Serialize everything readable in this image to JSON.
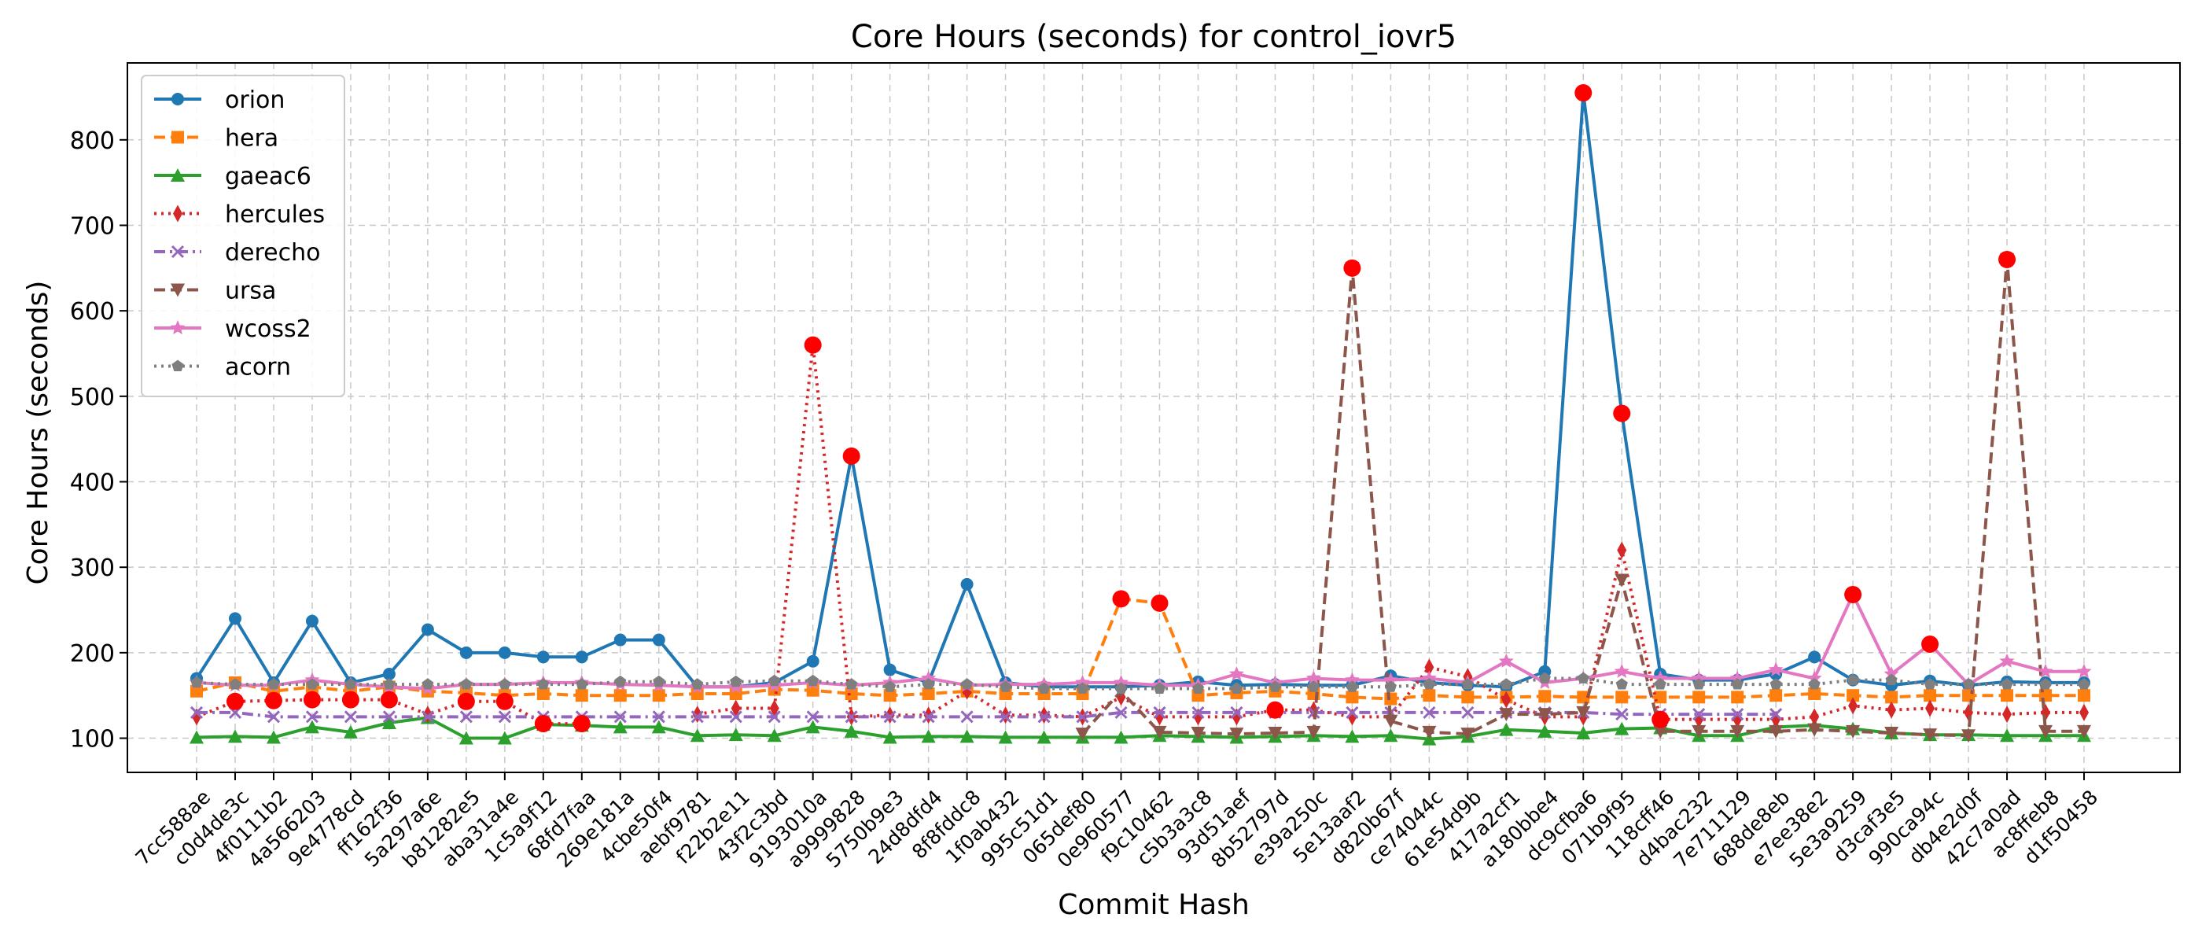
{
  "chart_data": {
    "type": "line",
    "title": "Core Hours (seconds) for control_iovr5",
    "xlabel": "Commit Hash",
    "ylabel": "Core Hours (seconds)",
    "ylim": [
      60,
      890
    ],
    "yticks": [
      100,
      200,
      300,
      400,
      500,
      600,
      700,
      800
    ],
    "grid": true,
    "legend_position": "upper-left",
    "categories": [
      "7cc588ae",
      "c0d4de3c",
      "4f0111b2",
      "4a566203",
      "9e4778cd",
      "ff162f36",
      "5a297a6e",
      "b81282e5",
      "aba31a4e",
      "1c5a9f12",
      "68fd7faa",
      "269e181a",
      "4cbe50f4",
      "aebf9781",
      "f22b2e11",
      "43f2c3bd",
      "9193010a",
      "a9999828",
      "5750b9e3",
      "24d8dfd4",
      "8f8fddc8",
      "1f0ab432",
      "995c51d1",
      "065def80",
      "0e960577",
      "f9c10462",
      "c5b3a3c8",
      "93d51aef",
      "8b52797d",
      "e39a250c",
      "5e13aaf2",
      "d820b67f",
      "ce74044c",
      "61e54d9b",
      "417a2cf1",
      "a180bbe4",
      "dc9cfba6",
      "071b9f95",
      "118cff46",
      "d4bac232",
      "7e711129",
      "688de8eb",
      "e7ee38e2",
      "5e3a9259",
      "d3caf3e5",
      "990ca94c",
      "db4e2d0f",
      "42c7a0ad",
      "ac8ffeb8",
      "d1f50458"
    ],
    "series": [
      {
        "name": "orion",
        "color": "#1f77b4",
        "dash": "solid",
        "marker": "circle",
        "values": [
          170,
          240,
          165,
          237,
          165,
          175,
          227,
          200,
          200,
          195,
          195,
          215,
          215,
          160,
          160,
          165,
          190,
          430,
          180,
          165,
          280,
          165,
          160,
          160,
          160,
          162,
          166,
          162,
          163,
          162,
          162,
          173,
          165,
          162,
          160,
          178,
          855,
          480,
          175,
          168,
          168,
          175,
          195,
          168,
          162,
          167,
          162,
          166,
          165,
          165
        ]
      },
      {
        "name": "hera",
        "color": "#ff7f0e",
        "dash": "dashed",
        "marker": "square",
        "values": [
          155,
          165,
          155,
          160,
          155,
          160,
          155,
          153,
          150,
          152,
          150,
          150,
          150,
          152,
          152,
          157,
          156,
          152,
          150,
          152,
          155,
          152,
          152,
          152,
          263,
          258,
          150,
          153,
          155,
          152,
          148,
          146,
          150,
          148,
          148,
          149,
          148,
          148,
          148,
          148,
          148,
          150,
          152,
          150,
          148,
          150,
          150,
          150,
          150,
          150
        ]
      },
      {
        "name": "gaeac6",
        "color": "#2ca02c",
        "dash": "solid",
        "marker": "triangle-up",
        "values": [
          101,
          102,
          101,
          113,
          107,
          118,
          124,
          100,
          100,
          116,
          115,
          113,
          113,
          103,
          104,
          103,
          113,
          108,
          101,
          102,
          102,
          101,
          101,
          101,
          101,
          103,
          102,
          101,
          102,
          103,
          102,
          103,
          99,
          102,
          110,
          108,
          106,
          111,
          112,
          103,
          103,
          113,
          115,
          111,
          106,
          104,
          104,
          103,
          103,
          103
        ]
      },
      {
        "name": "hercules",
        "color": "#d62728",
        "dash": "dotted",
        "marker": "diamond",
        "values": [
          125,
          143,
          144,
          145,
          145,
          145,
          128,
          143,
          143,
          117,
          117,
          null,
          null,
          128,
          135,
          135,
          560,
          125,
          127,
          127,
          155,
          127,
          127,
          125,
          148,
          125,
          125,
          125,
          133,
          133,
          125,
          125,
          183,
          172,
          145,
          125,
          125,
          320,
          122,
          122,
          122,
          122,
          125,
          138,
          133,
          135,
          130,
          128,
          130,
          130
        ]
      },
      {
        "name": "derecho",
        "color": "#9467bd",
        "dash": "dashdot",
        "marker": "x",
        "values": [
          130,
          130,
          125,
          125,
          125,
          125,
          125,
          125,
          125,
          125,
          125,
          125,
          125,
          125,
          125,
          125,
          125,
          125,
          125,
          125,
          125,
          125,
          125,
          125,
          130,
          130,
          130,
          130,
          130,
          130,
          130,
          130,
          130,
          130,
          130,
          130,
          130,
          128,
          128,
          128,
          128,
          128,
          null,
          null,
          null,
          null,
          null,
          null,
          null,
          null
        ]
      },
      {
        "name": "ursa",
        "color": "#8c564b",
        "dash": "dashed",
        "marker": "triangle-down",
        "values": [
          null,
          null,
          null,
          null,
          null,
          null,
          null,
          null,
          null,
          null,
          null,
          null,
          null,
          null,
          null,
          null,
          null,
          null,
          null,
          null,
          null,
          null,
          null,
          105,
          155,
          107,
          106,
          105,
          106,
          107,
          650,
          120,
          107,
          105,
          128,
          128,
          130,
          285,
          108,
          108,
          108,
          108,
          110,
          108,
          106,
          104,
          103,
          660,
          108,
          108
        ]
      },
      {
        "name": "wcoss2",
        "color": "#e377c2",
        "dash": "solid",
        "marker": "star",
        "values": [
          165,
          162,
          162,
          168,
          163,
          160,
          158,
          163,
          163,
          165,
          165,
          163,
          162,
          160,
          160,
          162,
          165,
          162,
          165,
          170,
          162,
          163,
          163,
          165,
          165,
          162,
          162,
          175,
          165,
          170,
          168,
          168,
          170,
          165,
          190,
          165,
          170,
          178,
          170,
          170,
          170,
          180,
          170,
          268,
          175,
          210,
          163,
          190,
          178,
          178
        ]
      },
      {
        "name": "acorn",
        "color": "#7f7f7f",
        "dash": "dotted",
        "marker": "pentagon",
        "values": [
          165,
          163,
          163,
          163,
          163,
          163,
          163,
          163,
          163,
          163,
          163,
          166,
          166,
          163,
          166,
          167,
          167,
          163,
          160,
          163,
          163,
          160,
          158,
          158,
          158,
          158,
          158,
          158,
          160,
          160,
          160,
          160,
          163,
          163,
          163,
          170,
          170,
          163,
          163,
          163,
          163,
          163,
          163,
          168,
          168,
          163,
          163,
          163,
          163,
          163
        ]
      }
    ],
    "highlights": [
      {
        "series": "orion",
        "categories": [
          "a9999828",
          "dc9cfba6",
          "071b9f95"
        ]
      },
      {
        "series": "hera",
        "categories": [
          "0e960577",
          "f9c10462"
        ]
      },
      {
        "series": "hercules",
        "categories": [
          "c0d4de3c",
          "4f0111b2",
          "4a566203",
          "9e4778cd",
          "ff162f36",
          "b81282e5",
          "aba31a4e",
          "1c5a9f12",
          "68fd7faa",
          "9193010a",
          "8b52797d",
          "118cff46"
        ]
      },
      {
        "series": "ursa",
        "categories": [
          "5e13aaf2",
          "42c7a0ad"
        ]
      },
      {
        "series": "wcoss2",
        "categories": [
          "5e3a9259",
          "990ca94c"
        ]
      }
    ],
    "highlight_color": "#ff0000"
  }
}
